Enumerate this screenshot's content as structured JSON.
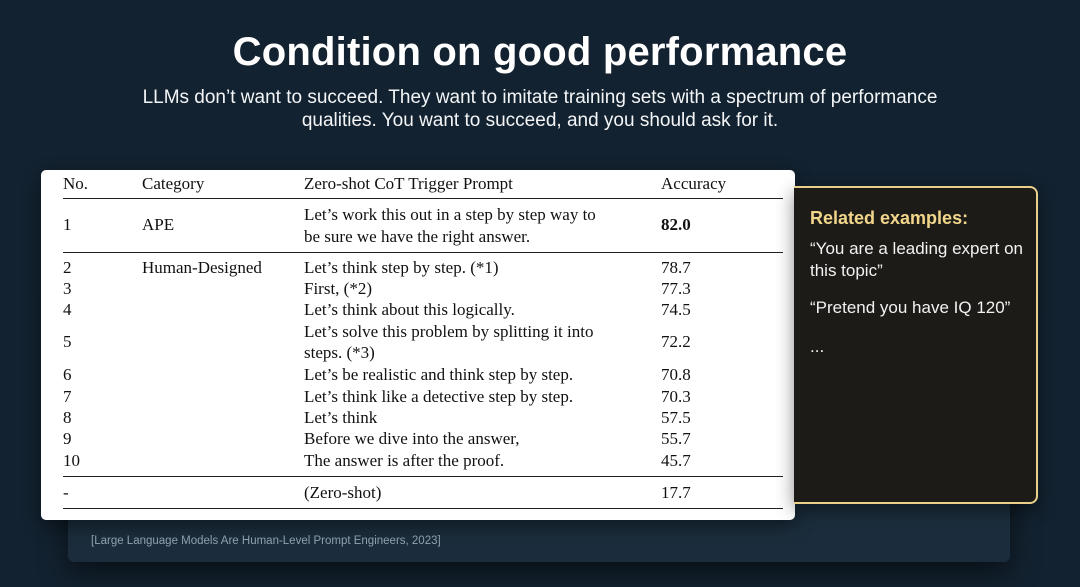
{
  "slide": {
    "title": "Condition on good performance",
    "subtitle": "LLMs don’t want to succeed. They want to imitate training sets with a spectrum of performance qualities. You want to succeed, and you should ask for it.",
    "citation": "[Large Language Models Are Human-Level Prompt Engineers, 2023]"
  },
  "table": {
    "headers": {
      "no": "No.",
      "category": "Category",
      "prompt": "Zero-shot CoT Trigger Prompt",
      "accuracy": "Accuracy"
    },
    "rows": [
      {
        "no": "1",
        "category": "APE",
        "prompt_line1": "Let’s work this out in a step by step way to",
        "prompt_line2": "be sure we have the right answer.",
        "accuracy": "82.0"
      },
      {
        "no": "2",
        "category": "Human-Designed",
        "prompt": "Let’s think step by step. (*1)",
        "accuracy": "78.7"
      },
      {
        "no": "3",
        "prompt": "First, (*2)",
        "accuracy": "77.3"
      },
      {
        "no": "4",
        "prompt": "Let’s think about this logically.",
        "accuracy": "74.5"
      },
      {
        "no": "5",
        "prompt_line1": "Let’s solve this problem by splitting it into",
        "prompt_line2": "steps. (*3)",
        "accuracy": "72.2"
      },
      {
        "no": "6",
        "prompt": "Let’s be realistic and think step by step.",
        "accuracy": "70.8"
      },
      {
        "no": "7",
        "prompt": "Let’s think like a detective step by step.",
        "accuracy": "70.3"
      },
      {
        "no": "8",
        "prompt": "Let’s think",
        "accuracy": "57.5"
      },
      {
        "no": "9",
        "prompt": "Before we dive into the answer,",
        "accuracy": "55.7"
      },
      {
        "no": "10",
        "prompt": "The answer is after the proof.",
        "accuracy": "45.7"
      },
      {
        "no": "-",
        "prompt": "(Zero-shot)",
        "accuracy": "17.7"
      }
    ]
  },
  "related": {
    "title": "Related examples:",
    "items": [
      "“You are a leading expert on this topic”",
      "“Pretend you have IQ 120”",
      "..."
    ]
  }
}
